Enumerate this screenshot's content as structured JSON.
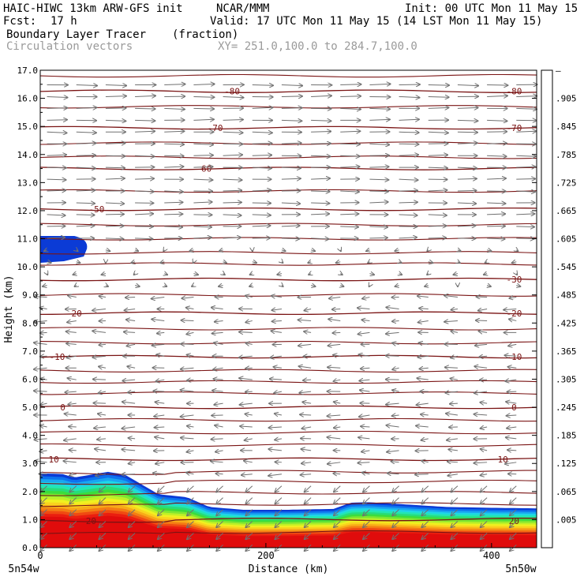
{
  "header": {
    "title_left": "HAIC-HIWC 13km ARW-GFS init",
    "org": "NCAR/MMM",
    "init": "Init: 00 UTC Mon 11 May 15",
    "fcst_label": "Fcst:",
    "fcst_value": "17 h",
    "valid": "Valid: 17 UTC Mon 11 May 15 (14 LST Mon 11 May 15)",
    "field_name": "Boundary Layer Tracer",
    "field_units": "(fraction)",
    "vector_label": "Circulation vectors",
    "xsec_coords": "XY= 251.0,100.0 to 284.7,100.0"
  },
  "chart_data": {
    "type": "heatmap",
    "xlabel": "Distance (km)",
    "ylabel": "Height (km)",
    "xlim": [
      0,
      440
    ],
    "ylim": [
      0,
      17
    ],
    "x_ticks": [
      0,
      200,
      400
    ],
    "y_ticks": [
      "0.0",
      "1.0",
      "2.0",
      "3.0",
      "4.0",
      "5.0",
      "6.0",
      "7.0",
      "8.0",
      "9.0",
      "10.0",
      "11.0",
      "12.0",
      "13.0",
      "14.0",
      "15.0",
      "16.0",
      "17.0"
    ],
    "left_endpoint": "5n54w",
    "right_endpoint": "5n50w",
    "colorbar": {
      "labels": [
        "–",
        ".905",
        ".845",
        ".785",
        ".725",
        ".665",
        ".605",
        ".545",
        ".485",
        ".425",
        ".365",
        ".305",
        ".245",
        ".185",
        ".125",
        ".065",
        ".005"
      ],
      "colors": [
        "#ffffff",
        "#0b3bd6",
        "#0e72ee",
        "#1aa6f0",
        "#1fd6e6",
        "#23e6b4",
        "#28dc7a",
        "#3cdc3c",
        "#7ee632",
        "#bef028",
        "#f0f020",
        "#fad21e",
        "#f8aa18",
        "#f47c14",
        "#f04a12",
        "#ea1e10",
        "#e00c0c"
      ]
    },
    "tracer_top_km": [
      [
        0,
        2.65
      ],
      [
        20,
        2.62
      ],
      [
        30,
        2.5
      ],
      [
        45,
        2.6
      ],
      [
        60,
        2.7
      ],
      [
        75,
        2.6
      ],
      [
        90,
        2.25
      ],
      [
        105,
        1.9
      ],
      [
        130,
        1.8
      ],
      [
        150,
        1.45
      ],
      [
        180,
        1.35
      ],
      [
        220,
        1.35
      ],
      [
        260,
        1.38
      ],
      [
        275,
        1.6
      ],
      [
        290,
        1.62
      ],
      [
        320,
        1.55
      ],
      [
        360,
        1.45
      ],
      [
        400,
        1.42
      ],
      [
        440,
        1.4
      ]
    ],
    "upper_tracer_patch": {
      "x_km": [
        0,
        40
      ],
      "z_km": [
        10.2,
        11.1
      ],
      "value_label": ".905"
    },
    "isotherms": [
      {
        "value": "-80",
        "z_km": 16.25
      },
      {
        "value": "-70",
        "z_km": 14.95
      },
      {
        "value": "-60",
        "z_km": 13.5
      },
      {
        "value": "-50",
        "z_km": 12.05
      },
      {
        "value": "-30",
        "z_km": 9.55
      },
      {
        "value": "-20",
        "z_km": 8.35
      },
      {
        "value": "-10",
        "z_km": 6.8
      },
      {
        "value": "0",
        "z_km": 5.0
      },
      {
        "value": "10",
        "z_km": 3.15
      },
      {
        "value": "20",
        "z_km": 0.95
      }
    ],
    "extra_isotherms_km": [
      16.8,
      15.7,
      14.4,
      13.9,
      12.7,
      11.5,
      11.0,
      10.5,
      10.1,
      9.0,
      7.8,
      7.3,
      6.3,
      5.9,
      5.5,
      4.55,
      4.1,
      3.65,
      2.65,
      2.3,
      1.9,
      1.5,
      0.5
    ]
  }
}
